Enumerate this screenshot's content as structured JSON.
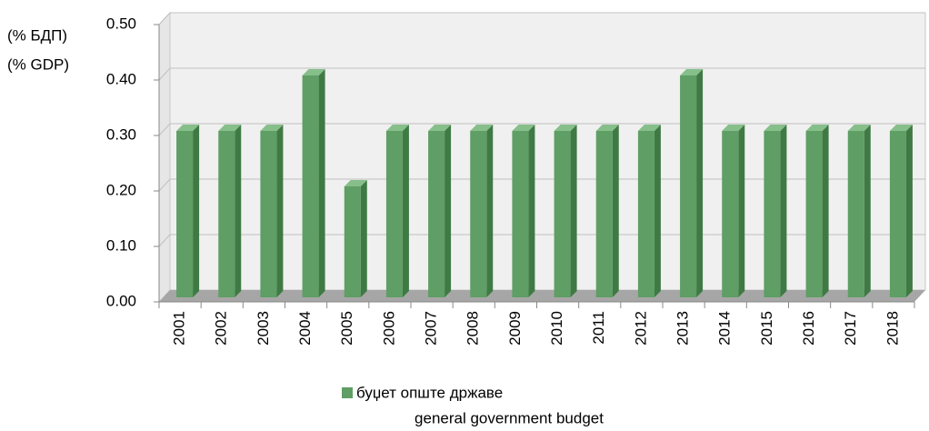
{
  "chart_data": {
    "type": "bar3d",
    "ylabel": [
      "(% БДП)",
      "(% GDP)"
    ],
    "categories": [
      "2001",
      "2002",
      "2003",
      "2004",
      "2005",
      "2006",
      "2007",
      "2008",
      "2009",
      "2010",
      "2011",
      "2012",
      "2013",
      "2014",
      "2015",
      "2016",
      "2017",
      "2018"
    ],
    "series": [
      {
        "name": "буџет опште државе",
        "color": "#5f9e64",
        "values": [
          0.3,
          0.3,
          0.3,
          0.4,
          0.2,
          0.3,
          0.3,
          0.3,
          0.3,
          0.3,
          0.3,
          0.3,
          0.4,
          0.3,
          0.3,
          0.3,
          0.3,
          0.3
        ]
      }
    ],
    "legend_subtitle": "general government budget",
    "ylim": [
      0,
      0.5
    ],
    "yticks": [
      {
        "value": 0,
        "label": "0.00"
      },
      {
        "value": 0.1,
        "label": "0.10"
      },
      {
        "value": 0.2,
        "label": "0.20"
      },
      {
        "value": 0.3,
        "label": "0.30"
      },
      {
        "value": 0.4,
        "label": "0.40"
      },
      {
        "value": 0.5,
        "label": "0.50"
      }
    ],
    "grid": true
  }
}
